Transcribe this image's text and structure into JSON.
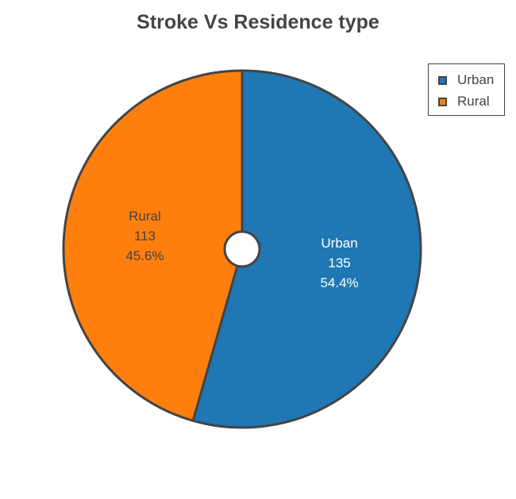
{
  "chart_data": {
    "type": "pie",
    "title": "Stroke Vs Residence type",
    "slices": [
      {
        "label": "Urban",
        "value": 135,
        "percent": "54.4%",
        "color": "#1f77b4",
        "text_color": "#ffffff"
      },
      {
        "label": "Rural",
        "value": 113,
        "percent": "45.6%",
        "color": "#ff7f0e",
        "text_color": "#444444"
      }
    ],
    "hole": true,
    "legend": {
      "position": "top-right",
      "items": [
        "Urban",
        "Rural"
      ]
    },
    "edge_color": "#444444"
  }
}
